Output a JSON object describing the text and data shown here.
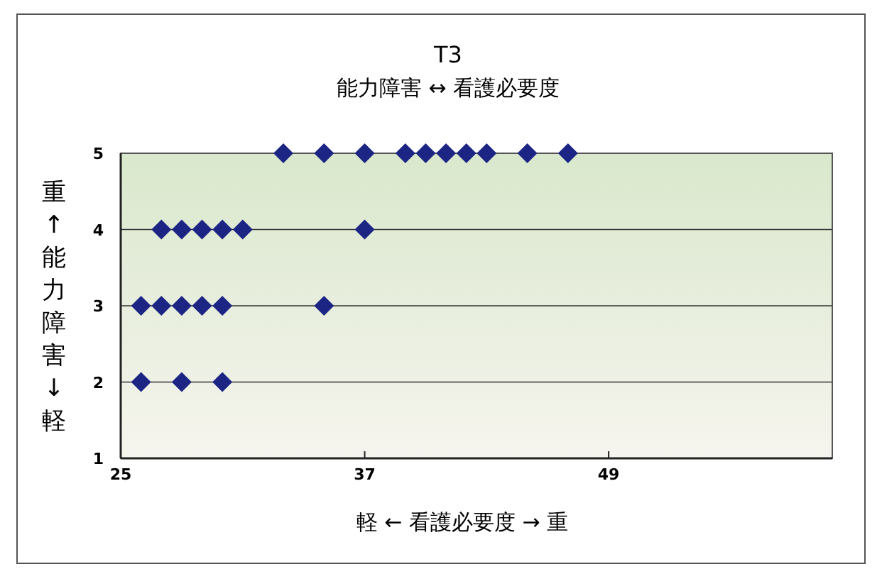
{
  "chart_data": {
    "type": "scatter",
    "title": "T3",
    "subtitle": "能力障害 ↔ 看護必要度",
    "xlabel": "軽 ← 看護必要度 → 重",
    "ylabel": "重↑能力障害↓軽",
    "xlim": [
      25,
      60
    ],
    "xticks": [
      25,
      37,
      49
    ],
    "ylim": [
      1,
      5
    ],
    "yticks": [
      1,
      2,
      3,
      4,
      5
    ],
    "grid": "y",
    "marker": "diamond",
    "series": [
      {
        "color": "#1c2484",
        "x": [
          26,
          28,
          30,
          26,
          27,
          28,
          29,
          30,
          35,
          27,
          28,
          29,
          30,
          31,
          37,
          33,
          35,
          37,
          39,
          40,
          41,
          42,
          43,
          45,
          47
        ],
        "values": [
          2,
          2,
          2,
          3,
          3,
          3,
          3,
          3,
          3,
          4,
          4,
          4,
          4,
          4,
          4,
          5,
          5,
          5,
          5,
          5,
          5,
          5,
          5,
          5,
          5
        ]
      }
    ]
  }
}
